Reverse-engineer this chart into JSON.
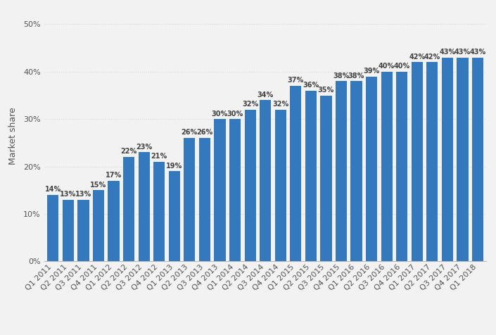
{
  "categories": [
    "Q1 2011",
    "Q2 2011",
    "Q3 2011",
    "Q4 2011",
    "Q1 2012",
    "Q2 2012",
    "Q3 2012",
    "Q4 2012",
    "Q1 2013",
    "Q2 2013",
    "Q3 2013",
    "Q4 2013",
    "Q1 2014",
    "Q2 2014",
    "Q3 2014",
    "Q4 2014",
    "Q1 2015",
    "Q2 2015",
    "Q3 2015",
    "Q4 2015",
    "Q1 2016",
    "Q2 2016",
    "Q3 2016",
    "Q4 2016",
    "Q1 2017",
    "Q2 2017",
    "Q3 2017",
    "Q4 2017",
    "Q1 2018"
  ],
  "values": [
    14,
    13,
    13,
    15,
    17,
    22,
    23,
    21,
    19,
    26,
    26,
    30,
    30,
    32,
    34,
    32,
    37,
    36,
    35,
    38,
    38,
    39,
    40,
    40,
    42,
    42,
    43,
    43,
    43
  ],
  "bar_color": "#3479be",
  "ylabel": "Market share",
  "ylim": [
    0,
    53
  ],
  "yticks": [
    0,
    10,
    20,
    30,
    40,
    50
  ],
  "ytick_labels": [
    "0%",
    "10%",
    "20%",
    "30%",
    "40%",
    "50%"
  ],
  "grid_color": "#d9d9d9",
  "background_color": "#f2f2f2",
  "label_fontsize": 7.0,
  "ylabel_fontsize": 9,
  "tick_fontsize": 8,
  "bar_width": 0.75
}
